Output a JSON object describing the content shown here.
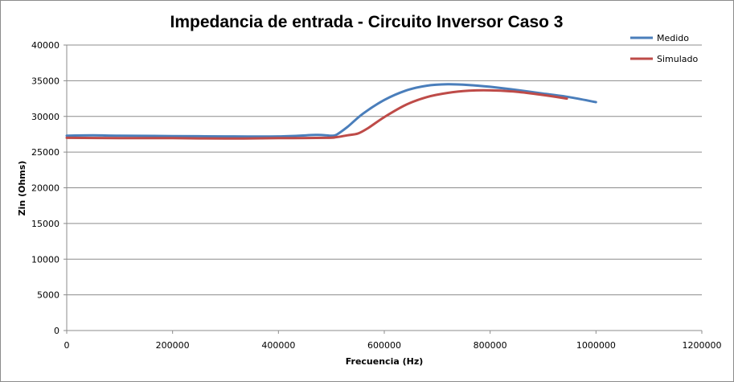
{
  "chart_data": {
    "type": "line",
    "title": "Impedancia de entrada - Circuito Inversor Caso 3",
    "xlabel": "Frecuencia  (Hz)",
    "ylabel": "Zin  (Ohms)",
    "xlim": [
      0,
      1200000
    ],
    "ylim": [
      0,
      40000
    ],
    "x_ticks": [
      0,
      200000,
      400000,
      600000,
      800000,
      1000000,
      1200000
    ],
    "y_ticks": [
      0,
      5000,
      10000,
      15000,
      20000,
      25000,
      30000,
      35000,
      40000
    ],
    "x_tick_labels": [
      "0",
      "200000",
      "400000",
      "600000",
      "800000",
      "1000000",
      "1200000"
    ],
    "y_tick_labels": [
      "0",
      "5000",
      "10000",
      "15000",
      "20000",
      "25000",
      "30000",
      "35000",
      "40000"
    ],
    "grid": "horizontal",
    "legend_position": "top-right",
    "series": [
      {
        "name": "Medido",
        "color": "#4a7ebb",
        "points": [
          [
            0,
            27300
          ],
          [
            50000,
            27350
          ],
          [
            100000,
            27300
          ],
          [
            200000,
            27250
          ],
          [
            300000,
            27200
          ],
          [
            400000,
            27200
          ],
          [
            470000,
            27400
          ],
          [
            490000,
            27350
          ],
          [
            500000,
            27300
          ],
          [
            510000,
            27450
          ],
          [
            530000,
            28500
          ],
          [
            560000,
            30400
          ],
          [
            600000,
            32300
          ],
          [
            640000,
            33600
          ],
          [
            680000,
            34300
          ],
          [
            720000,
            34500
          ],
          [
            760000,
            34400
          ],
          [
            800000,
            34150
          ],
          [
            850000,
            33700
          ],
          [
            900000,
            33200
          ],
          [
            950000,
            32700
          ],
          [
            1000000,
            32000
          ]
        ]
      },
      {
        "name": "Simulado",
        "color": "#be4b48",
        "points": [
          [
            0,
            27000
          ],
          [
            100000,
            26950
          ],
          [
            200000,
            26950
          ],
          [
            300000,
            26900
          ],
          [
            400000,
            26950
          ],
          [
            490000,
            27000
          ],
          [
            510000,
            27100
          ],
          [
            530000,
            27350
          ],
          [
            550000,
            27600
          ],
          [
            570000,
            28400
          ],
          [
            600000,
            29900
          ],
          [
            640000,
            31600
          ],
          [
            680000,
            32700
          ],
          [
            720000,
            33300
          ],
          [
            760000,
            33600
          ],
          [
            800000,
            33650
          ],
          [
            850000,
            33450
          ],
          [
            900000,
            33000
          ],
          [
            945000,
            32500
          ]
        ]
      }
    ]
  }
}
